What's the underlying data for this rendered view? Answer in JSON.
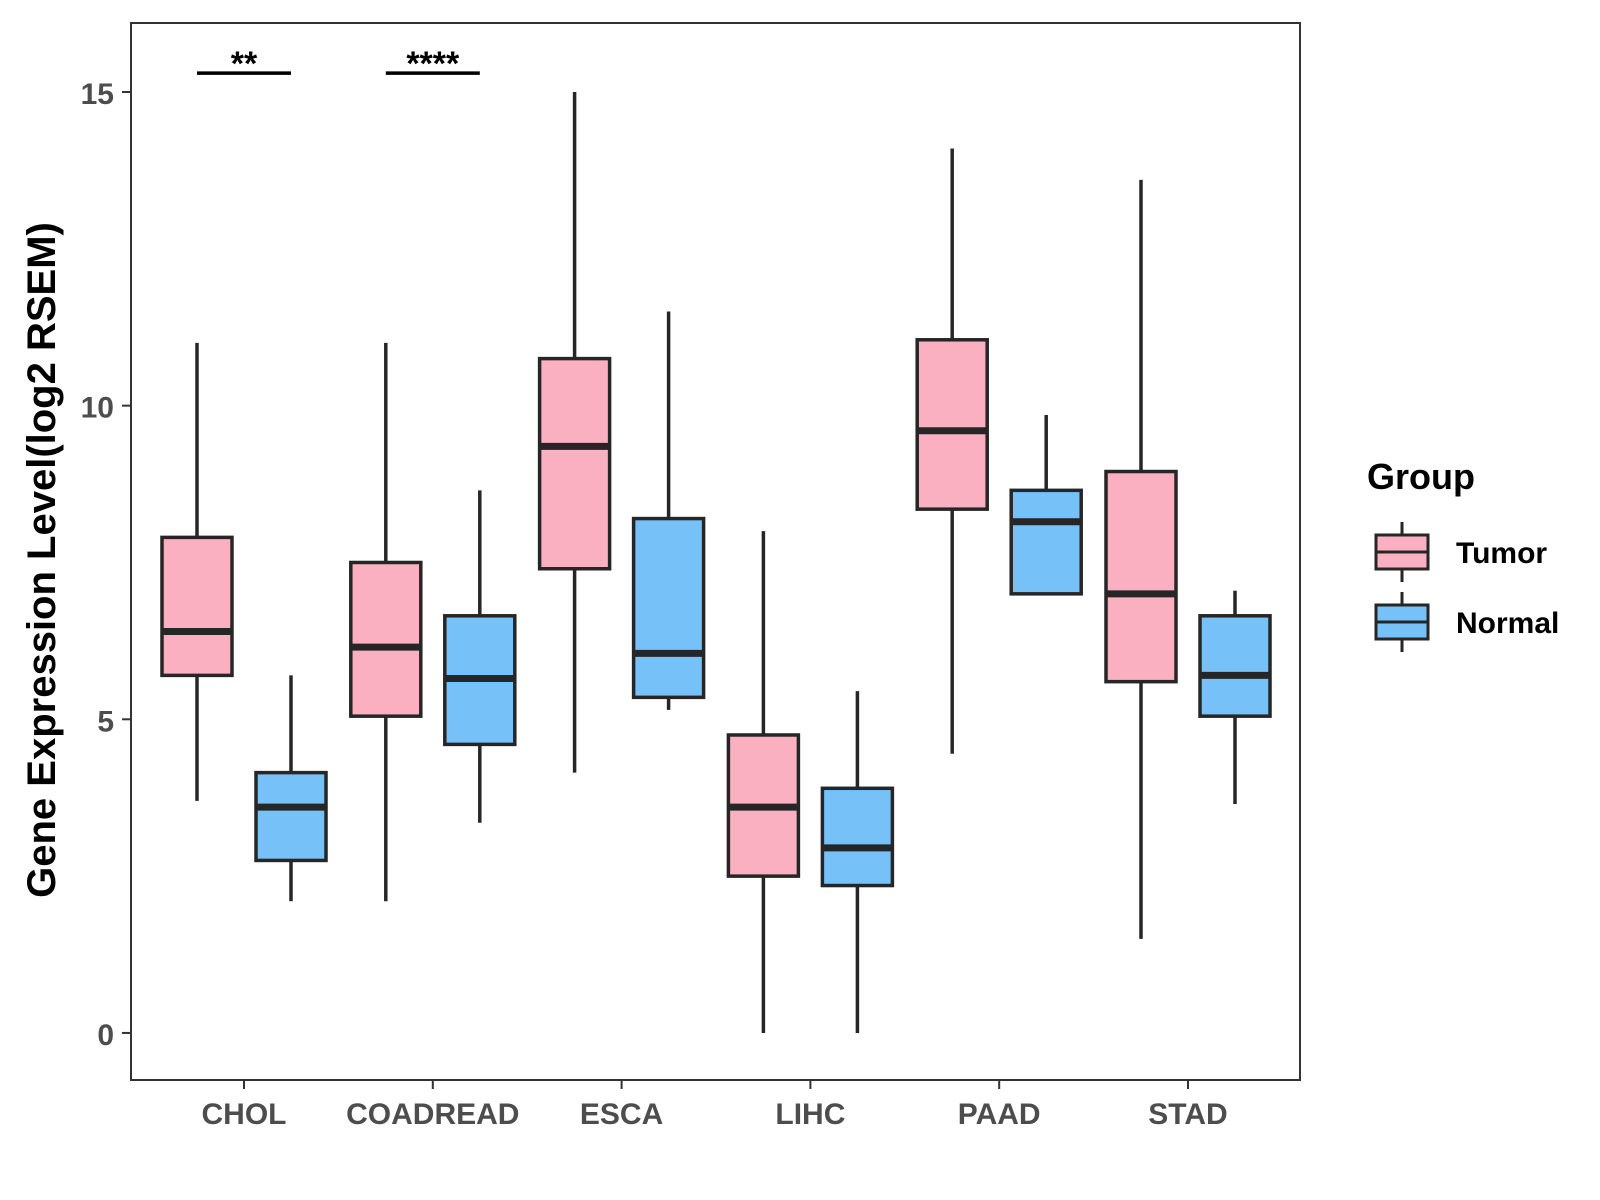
{
  "chart_data": {
    "type": "boxplot",
    "ylabel": "Gene Expression Level(log2 RSEM)",
    "xlabel": "",
    "ylim": [
      -0.75,
      16.1
    ],
    "yticks": [
      0,
      5,
      10,
      15
    ],
    "grid": false,
    "categories": [
      "CHOL",
      "COADREAD",
      "ESCA",
      "LIHC",
      "PAAD",
      "STAD"
    ],
    "legend": {
      "title": "Group",
      "position": "right",
      "entries": [
        {
          "name": "Tumor",
          "color": "#FBB0C2"
        },
        {
          "name": "Normal",
          "color": "#76C1F8"
        }
      ]
    },
    "series": [
      {
        "name": "Tumor",
        "color": "#FBB0C2",
        "boxes": [
          {
            "min": 3.7,
            "q1": 5.7,
            "median": 6.4,
            "q3": 7.9,
            "max": 11.0
          },
          {
            "min": 2.1,
            "q1": 5.05,
            "median": 6.15,
            "q3": 7.5,
            "max": 11.0
          },
          {
            "min": 4.15,
            "q1": 7.4,
            "median": 9.35,
            "q3": 10.75,
            "max": 15.0
          },
          {
            "min": 0.0,
            "q1": 2.5,
            "median": 3.6,
            "q3": 4.75,
            "max": 8.0
          },
          {
            "min": 4.45,
            "q1": 8.35,
            "median": 9.6,
            "q3": 11.05,
            "max": 14.1
          },
          {
            "min": 1.5,
            "q1": 5.6,
            "median": 7.0,
            "q3": 8.95,
            "max": 13.6
          }
        ]
      },
      {
        "name": "Normal",
        "color": "#76C1F8",
        "boxes": [
          {
            "min": 2.1,
            "q1": 2.75,
            "median": 3.6,
            "q3": 4.15,
            "max": 5.7
          },
          {
            "min": 3.35,
            "q1": 4.6,
            "median": 5.65,
            "q3": 6.65,
            "max": 8.65
          },
          {
            "min": 5.15,
            "q1": 5.35,
            "median": 6.05,
            "q3": 8.2,
            "max": 11.5
          },
          {
            "min": 0.0,
            "q1": 2.35,
            "median": 2.95,
            "q3": 3.9,
            "max": 5.45
          },
          {
            "min": 7.0,
            "q1": 7.0,
            "median": 8.15,
            "q3": 8.65,
            "max": 9.85
          },
          {
            "min": 3.65,
            "q1": 5.05,
            "median": 5.7,
            "q3": 6.65,
            "max": 7.05
          }
        ]
      }
    ],
    "annotations": [
      {
        "category": "CHOL",
        "label": "**",
        "y": 15.3
      },
      {
        "category": "COADREAD",
        "label": "****",
        "y": 15.3
      }
    ]
  }
}
